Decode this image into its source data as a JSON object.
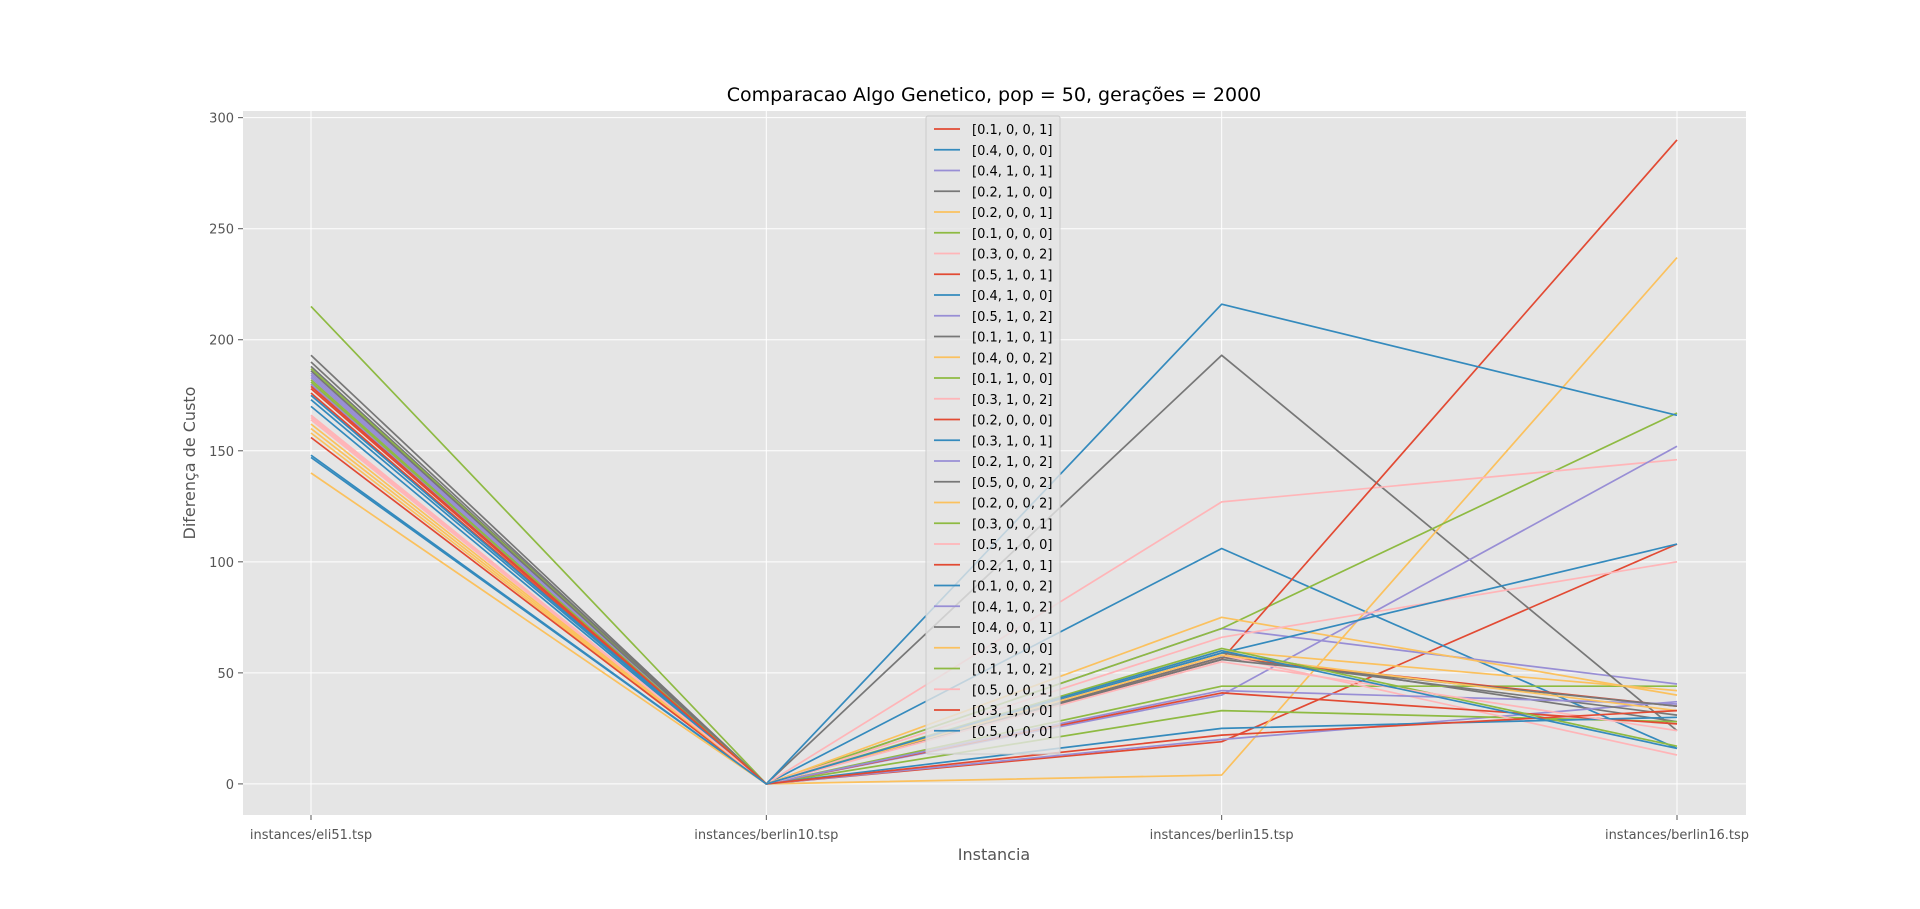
{
  "chart_data": {
    "type": "line",
    "title": "Comparacao Algo Genetico, pop = 50, gerações = 2000",
    "xlabel": "Instancia",
    "ylabel": "Diferença de Custo",
    "categories": [
      "instances/eli51.tsp",
      "instances/berlin10.tsp",
      "instances/berlin15.tsp",
      "instances/berlin16.tsp"
    ],
    "ylim": [
      -14,
      303
    ],
    "yticks": [
      0,
      50,
      100,
      150,
      200,
      250,
      300
    ],
    "grid": true,
    "legend_position": "upper center",
    "series": [
      {
        "name": "[0.1, 0, 0, 1]",
        "color": "#E24A33",
        "values": [
          176,
          0,
          19,
          108
        ]
      },
      {
        "name": "[0.4, 0, 0, 0]",
        "color": "#348ABD",
        "values": [
          147,
          0,
          106,
          16
        ]
      },
      {
        "name": "[0.4, 1, 0, 1]",
        "color": "#988ED5",
        "values": [
          185,
          0,
          70,
          45
        ]
      },
      {
        "name": "[0.2, 1, 0, 0]",
        "color": "#777777",
        "values": [
          193,
          0,
          193,
          24
        ]
      },
      {
        "name": "[0.2, 0, 0, 1]",
        "color": "#FBC15E",
        "values": [
          140,
          0,
          4,
          237
        ]
      },
      {
        "name": "[0.1, 0, 0, 0]",
        "color": "#8EBA42",
        "values": [
          215,
          0,
          70,
          167
        ]
      },
      {
        "name": "[0.3, 0, 0, 2]",
        "color": "#FFB5B8",
        "values": [
          165,
          0,
          127,
          146
        ]
      },
      {
        "name": "[0.5, 1, 0, 1]",
        "color": "#E24A33",
        "values": [
          180,
          0,
          56,
          290
        ]
      },
      {
        "name": "[0.4, 1, 0, 0]",
        "color": "#348ABD",
        "values": [
          173,
          0,
          216,
          166
        ]
      },
      {
        "name": "[0.5, 1, 0, 2]",
        "color": "#988ED5",
        "values": [
          180,
          0,
          40,
          152
        ]
      },
      {
        "name": "[0.1, 1, 0, 1]",
        "color": "#777777",
        "values": [
          188,
          0,
          59,
          28
        ]
      },
      {
        "name": "[0.4, 0, 0, 2]",
        "color": "#FBC15E",
        "values": [
          158,
          0,
          75,
          40
        ]
      },
      {
        "name": "[0.1, 1, 0, 0]",
        "color": "#8EBA42",
        "values": [
          187,
          0,
          44,
          44
        ]
      },
      {
        "name": "[0.3, 1, 0, 2]",
        "color": "#FFB5B8",
        "values": [
          166,
          0,
          66,
          100
        ]
      },
      {
        "name": "[0.2, 0, 0, 0]",
        "color": "#E24A33",
        "values": [
          178,
          0,
          57,
          35
        ]
      },
      {
        "name": "[0.3, 1, 0, 1]",
        "color": "#348ABD",
        "values": [
          170,
          0,
          59,
          108
        ]
      },
      {
        "name": "[0.2, 1, 0, 2]",
        "color": "#988ED5",
        "values": [
          184,
          0,
          20,
          37
        ]
      },
      {
        "name": "[0.5, 0, 0, 2]",
        "color": "#777777",
        "values": [
          190,
          0,
          57,
          31
        ]
      },
      {
        "name": "[0.2, 0, 0, 2]",
        "color": "#FBC15E",
        "values": [
          160,
          0,
          60,
          42
        ]
      },
      {
        "name": "[0.3, 0, 0, 1]",
        "color": "#8EBA42",
        "values": [
          182,
          0,
          33,
          28
        ]
      },
      {
        "name": "[0.5, 1, 0, 0]",
        "color": "#FFB5B8",
        "values": [
          164,
          0,
          58,
          13
        ]
      },
      {
        "name": "[0.2, 1, 0, 1]",
        "color": "#E24A33",
        "values": [
          156,
          0,
          41,
          27
        ]
      },
      {
        "name": "[0.1, 0, 0, 2]",
        "color": "#348ABD",
        "values": [
          175,
          0,
          25,
          30
        ]
      },
      {
        "name": "[0.4, 1, 0, 2]",
        "color": "#988ED5",
        "values": [
          183,
          0,
          42,
          36
        ]
      },
      {
        "name": "[0.4, 0, 0, 1]",
        "color": "#777777",
        "values": [
          186,
          0,
          56,
          35
        ]
      },
      {
        "name": "[0.3, 0, 0, 0]",
        "color": "#FBC15E",
        "values": [
          162,
          0,
          58,
          33
        ]
      },
      {
        "name": "[0.1, 1, 0, 2]",
        "color": "#8EBA42",
        "values": [
          181,
          0,
          61,
          17
        ]
      },
      {
        "name": "[0.5, 0, 0, 1]",
        "color": "#FFB5B8",
        "values": [
          166,
          0,
          55,
          24
        ]
      },
      {
        "name": "[0.3, 1, 0, 0]",
        "color": "#E24A33",
        "values": [
          179,
          0,
          22,
          33
        ]
      },
      {
        "name": "[0.5, 0, 0, 0]",
        "color": "#348ABD",
        "values": [
          148,
          0,
          60,
          16
        ]
      }
    ]
  }
}
